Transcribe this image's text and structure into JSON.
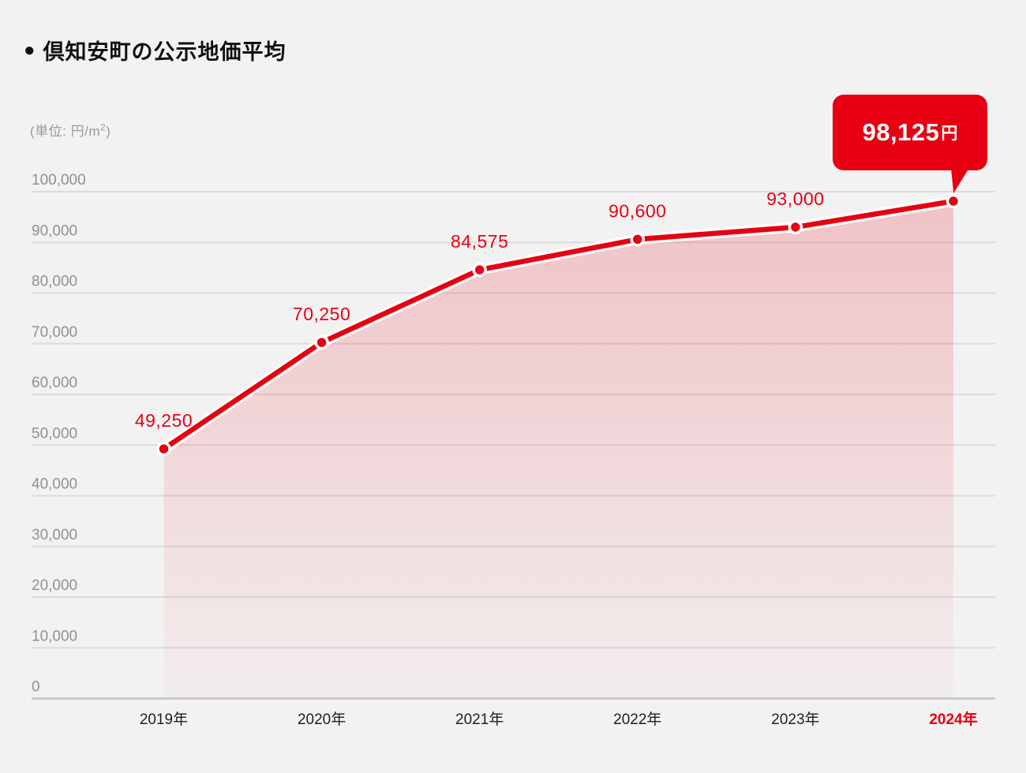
{
  "page": {
    "background_color": "#f2f2f2"
  },
  "header": {
    "bullet": "●",
    "title": "倶知安町の公示地価平均"
  },
  "unit": {
    "prefix": "(単位: 円/m",
    "sup": "2",
    "suffix": ")"
  },
  "callout": {
    "value": "98,125",
    "unit": "円"
  },
  "chart_data": {
    "type": "area",
    "title": "倶知安町の公示地価平均",
    "unit_label": "(単位: 円/m2)",
    "categories": [
      "2019年",
      "2020年",
      "2021年",
      "2022年",
      "2023年",
      "2024年"
    ],
    "values": [
      49250,
      70250,
      84575,
      90600,
      93000,
      98125
    ],
    "value_labels": [
      "49,250",
      "70,250",
      "84,575",
      "90,600",
      "93,000",
      null
    ],
    "callout_value_label": "98,125円",
    "highlight_category": "2024年",
    "ylim": [
      0,
      100000
    ],
    "y_tick_step": 10000,
    "y_tick_labels": [
      "0",
      "10,000",
      "20,000",
      "30,000",
      "40,000",
      "50,000",
      "60,000",
      "70,000",
      "80,000",
      "90,000",
      "100,000"
    ],
    "grid": true,
    "legend": false,
    "colors": {
      "line": "#e60012",
      "line_casing": "#ffffff",
      "point_fill": "#e60012",
      "point_ring": "#ffffff",
      "area_top": "rgba(230,0,18,0.20)",
      "area_bottom": "rgba(230,0,18,0.02)",
      "grid": "#dcdcdc",
      "axis_zero": "#c9c9c9",
      "data_label": "#e60012",
      "x_label": "#1f1f1f",
      "x_label_highlight": "#e60012",
      "y_label": "#919191",
      "callout_bg": "#e60012",
      "callout_text": "#ffffff"
    }
  }
}
